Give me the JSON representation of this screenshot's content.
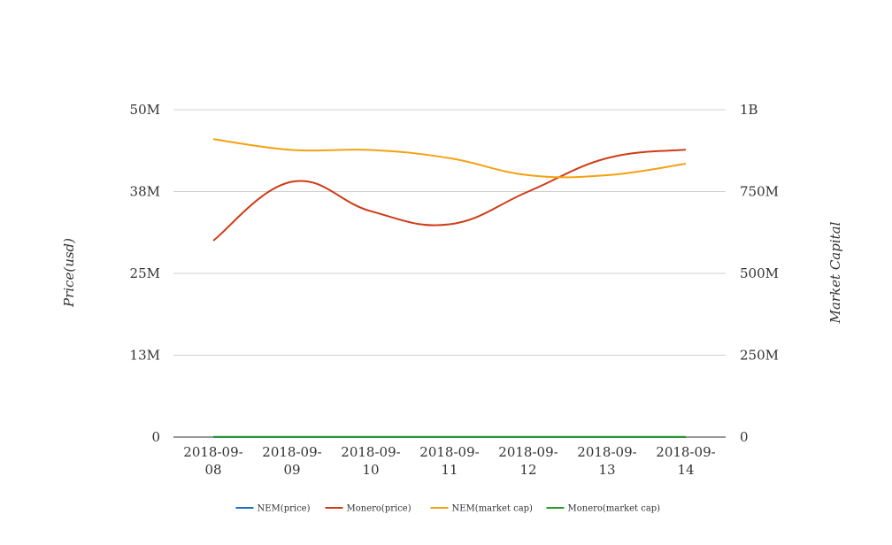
{
  "chart_data": {
    "type": "line",
    "categories": [
      [
        "2018-09-",
        "08"
      ],
      [
        "2018-09-",
        "09"
      ],
      [
        "2018-09-",
        "10"
      ],
      [
        "2018-09-",
        "11"
      ],
      [
        "2018-09-",
        "12"
      ],
      [
        "2018-09-",
        "13"
      ],
      [
        "2018-09-",
        "14"
      ]
    ],
    "y_left": {
      "label": "Price(usd)",
      "range": [
        0,
        50000000
      ],
      "ticks": [
        "0",
        "13M",
        "25M",
        "38M",
        "50M"
      ]
    },
    "y_right": {
      "label": "Market Capital",
      "range": [
        0,
        1000000000
      ],
      "ticks": [
        "0",
        "250M",
        "500M",
        "750M",
        "1B"
      ]
    },
    "grid": true,
    "legend_position": "bottom",
    "series": [
      {
        "name": "NEM(price)",
        "axis": "left",
        "color": "#1f6ec6",
        "values": [
          0.05,
          0.05,
          0.05,
          0.05,
          0.05,
          0.05,
          0.05
        ]
      },
      {
        "name": "Monero(price)",
        "axis": "left",
        "color": "#cf3c17",
        "values": [
          30000000,
          39000000,
          34500000,
          32500000,
          37500000,
          42600000,
          43900000
        ]
      },
      {
        "name": "NEM(market cap)",
        "axis": "right",
        "color": "#f5a112",
        "values": [
          910000000,
          877000000,
          877000000,
          852000000,
          800000000,
          800000000,
          835000000
        ]
      },
      {
        "name": "Monero(market cap)",
        "axis": "right",
        "color": "#2a9a2a",
        "values": [
          800000,
          800000,
          800000,
          800000,
          800000,
          800000,
          800000
        ]
      }
    ]
  }
}
